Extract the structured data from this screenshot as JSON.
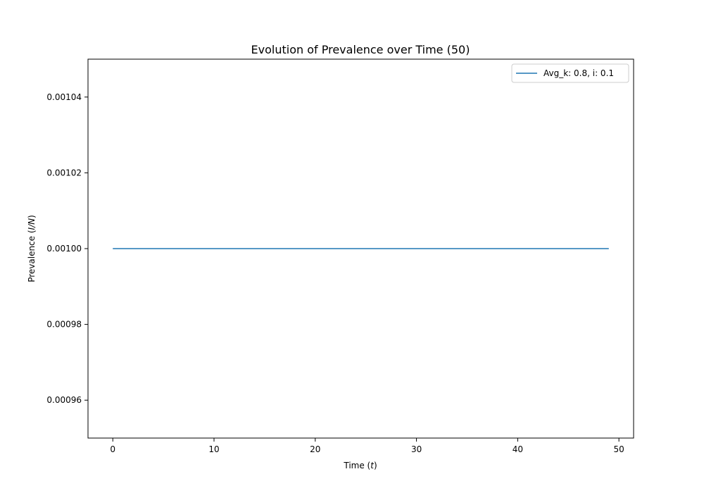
{
  "chart_data": {
    "type": "line",
    "title": "Evolution of Prevalence over Time (50)",
    "xlabel_prefix": "Time (",
    "xlabel_var": "t",
    "xlabel_suffix": ")",
    "ylabel_prefix": "Prevalence (",
    "ylabel_var": "I/N",
    "ylabel_suffix": ")",
    "xlim": [
      -2.45,
      51.45
    ],
    "ylim": [
      0.00095,
      0.00105
    ],
    "xticks": [
      0,
      10,
      20,
      30,
      40,
      50
    ],
    "xtick_labels": [
      "0",
      "10",
      "20",
      "30",
      "40",
      "50"
    ],
    "yticks": [
      0.00096,
      0.00098,
      0.001,
      0.00102,
      0.00104
    ],
    "ytick_labels": [
      "0.00096",
      "0.00098",
      "0.00100",
      "0.00102",
      "0.00104"
    ],
    "grid": false,
    "legend_position": "top-right",
    "series": [
      {
        "name": "Avg_k: 0.8, i: 0.1",
        "color": "#1f77b4",
        "x": [
          0,
          49
        ],
        "y": [
          0.001,
          0.001
        ]
      }
    ]
  }
}
